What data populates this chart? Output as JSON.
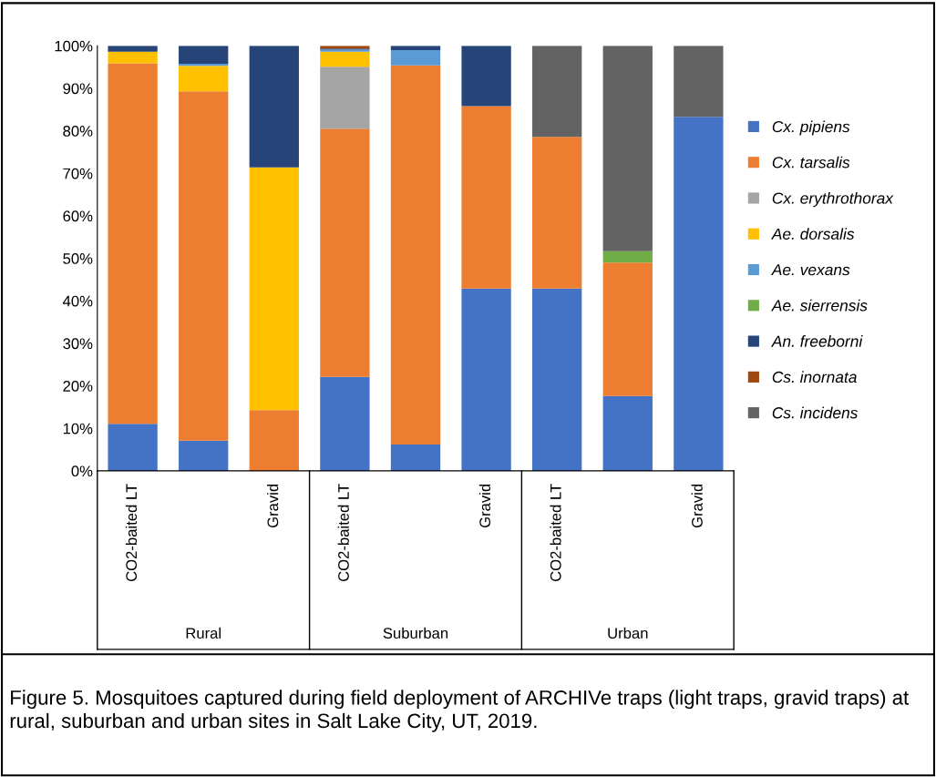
{
  "chart_data": {
    "type": "bar",
    "stacked": true,
    "categories": [
      "CO2-baited LT",
      null,
      "Gravid",
      "CO2-baited LT",
      null,
      "Gravid",
      "CO2-baited LT",
      null,
      "Gravid"
    ],
    "series": [
      {
        "name": "Cx. pipiens",
        "color": "#4472c4",
        "values": [
          11.1,
          7.1,
          0,
          22.1,
          6.2,
          42.9,
          42.9,
          17.6,
          83.3
        ]
      },
      {
        "name": "Cx. tarsalis",
        "color": "#ed7d31",
        "values": [
          84.8,
          82.2,
          14.3,
          58.4,
          89.2,
          42.9,
          35.7,
          31.4,
          0
        ]
      },
      {
        "name": "Cx. erythrothorax",
        "color": "#a5a5a5",
        "values": [
          0,
          0,
          0,
          14.6,
          0,
          0,
          0,
          0,
          0
        ]
      },
      {
        "name": "Ae. dorsalis",
        "color": "#ffc000",
        "values": [
          2.7,
          6.0,
          57.1,
          3.5,
          0,
          0,
          0,
          0,
          0
        ]
      },
      {
        "name": "Ae. vexans",
        "color": "#5b9bd5",
        "values": [
          0,
          0.5,
          0,
          0.5,
          3.6,
          0,
          0,
          0,
          0
        ]
      },
      {
        "name": "Ae. sierrensis",
        "color": "#70ad47",
        "values": [
          0,
          0,
          0,
          0,
          0,
          0,
          0,
          2.7,
          0
        ]
      },
      {
        "name": "An. freeborni",
        "color": "#264478",
        "values": [
          1.4,
          4.2,
          28.6,
          0.3,
          1.0,
          14.2,
          0,
          0,
          0
        ]
      },
      {
        "name": "Cs. inornata",
        "color": "#9e480e",
        "values": [
          0,
          0,
          0,
          0.6,
          0,
          0,
          0,
          0,
          0
        ]
      },
      {
        "name": "Cs. incidens",
        "color": "#636363",
        "values": [
          0,
          0,
          0,
          0,
          0,
          0,
          21.4,
          48.3,
          16.7
        ]
      }
    ],
    "ylim": [
      0,
      100
    ],
    "yticks": [
      {
        "value": 0,
        "label": "0%"
      },
      {
        "value": 10,
        "label": "10%"
      },
      {
        "value": 20,
        "label": "20%"
      },
      {
        "value": 30,
        "label": "30%"
      },
      {
        "value": 40,
        "label": "40%"
      },
      {
        "value": 50,
        "label": "50%"
      },
      {
        "value": 60,
        "label": "60%"
      },
      {
        "value": 70,
        "label": "70%"
      },
      {
        "value": 80,
        "label": "80%"
      },
      {
        "value": 90,
        "label": "90%"
      },
      {
        "value": 100,
        "label": "100%"
      }
    ],
    "grid": false,
    "legend": "right",
    "annotations": [
      "Rural",
      "Suburban",
      "Urban",
      "Figure 5. Mosquitoes captured during field deployment of ARCHIVe traps (light traps, gravid traps) at rural, suburban and urban sites in Salt Lake City, UT, 2019."
    ]
  }
}
